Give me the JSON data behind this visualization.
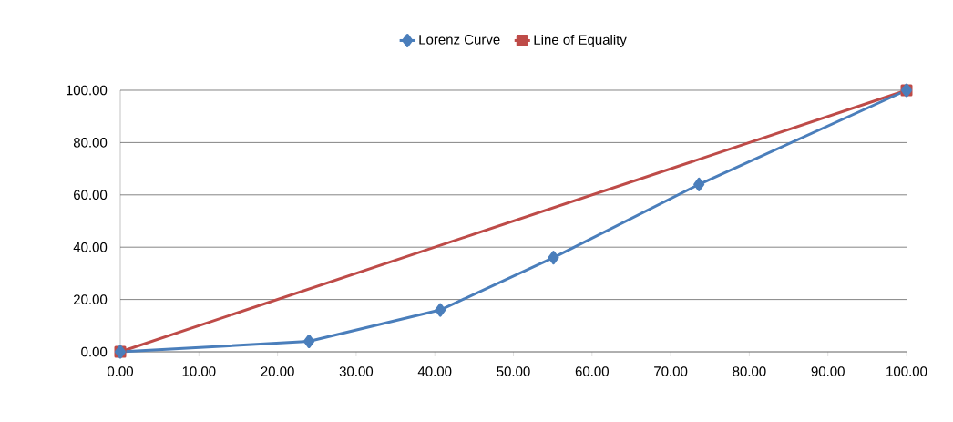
{
  "chart_data": {
    "type": "line",
    "xlim": [
      0,
      100
    ],
    "ylim": [
      0,
      100
    ],
    "xticks": [
      {
        "value": 0,
        "label": "0.00"
      },
      {
        "value": 10,
        "label": "10.00"
      },
      {
        "value": 20,
        "label": "20.00"
      },
      {
        "value": 30,
        "label": "30.00"
      },
      {
        "value": 40,
        "label": "40.00"
      },
      {
        "value": 50,
        "label": "50.00"
      },
      {
        "value": 60,
        "label": "60.00"
      },
      {
        "value": 70,
        "label": "70.00"
      },
      {
        "value": 80,
        "label": "80.00"
      },
      {
        "value": 90,
        "label": "90.00"
      },
      {
        "value": 100,
        "label": "100.00"
      }
    ],
    "yticks": [
      {
        "value": 0,
        "label": "0.00"
      },
      {
        "value": 20,
        "label": "20.00"
      },
      {
        "value": 40,
        "label": "40.00"
      },
      {
        "value": 60,
        "label": "60.00"
      },
      {
        "value": 80,
        "label": "80.00"
      },
      {
        "value": 100,
        "label": "100.00"
      }
    ],
    "grid": "y",
    "legend": "top",
    "line_style": "solid",
    "series": [
      {
        "name": "Lorenz Curve",
        "color": "#4a7ebb",
        "marker": "diamond",
        "x": [
          0,
          24,
          40.7,
          55.1,
          73.6,
          100
        ],
        "values": [
          0,
          4,
          16,
          36,
          64,
          100
        ]
      },
      {
        "name": "Line of Equality",
        "color": "#be4b48",
        "marker": "square",
        "x": [
          0,
          100
        ],
        "values": [
          0,
          100
        ]
      }
    ]
  }
}
